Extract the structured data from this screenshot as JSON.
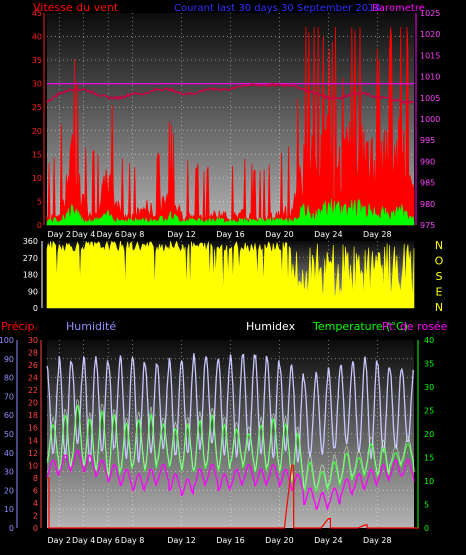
{
  "colors": {
    "background": "#000000",
    "plot_top": "#0b0b0b",
    "plot_bottom": "#b4b4b4",
    "wind": "#ff0000",
    "gust": "#00ff00",
    "barometer": "#ff00ff",
    "barometer_line": "#cc0044",
    "direction": "#ffff00",
    "humidity": "#9090ff",
    "humidity_line": "#c8c8ff",
    "humidex": "#ffffff",
    "temperature": "#00ff00",
    "temperature_line": "#44ff44",
    "dewpoint": "#ff00ff",
    "precip": "#ff0000",
    "title_blue": "#3030ff",
    "grid": "#ffffff"
  },
  "x_ticks": [
    "Day 2",
    "Day 4",
    "Day 6",
    "Day 8",
    "Day 12",
    "Day 16",
    "Day 20",
    "Day 24",
    "Day 28"
  ],
  "chart_data": [
    {
      "id": "wind",
      "type": "line",
      "title": "Courant last 30 days  30 September 2014",
      "left_label": "Vitesse du vent",
      "right_label": "Barometre",
      "x_range": [
        1,
        31
      ],
      "left_ticks": [
        "45",
        "40",
        "35",
        "30",
        "25",
        "20",
        "15",
        "10",
        "5",
        "0"
      ],
      "left_range": [
        0,
        45
      ],
      "right_ticks": [
        "1025",
        "1020",
        "1015",
        "1010",
        "1005",
        "1000",
        "995",
        "990",
        "985",
        "980",
        "975"
      ],
      "right_range": [
        975,
        1025
      ],
      "reference_line_left": 30,
      "series": [
        {
          "key": "wind",
          "values": [
            2,
            3,
            18,
            6,
            3,
            12,
            4,
            2,
            5,
            3,
            8,
            3,
            2,
            2,
            3,
            2,
            3,
            2,
            2,
            3,
            4,
            18,
            16,
            20,
            14,
            22,
            18,
            16,
            18,
            20,
            8
          ]
        },
        {
          "key": "gust",
          "values": [
            1,
            1,
            3,
            1,
            1,
            2,
            1,
            1,
            1,
            1,
            2,
            1,
            1,
            1,
            1,
            1,
            1,
            1,
            1,
            1,
            1,
            3,
            2,
            4,
            3,
            4,
            3,
            3,
            2,
            3,
            1
          ]
        },
        {
          "key": "barometer",
          "values": [
            1004,
            1006,
            1007,
            1007,
            1006,
            1005,
            1005,
            1006,
            1006,
            1007,
            1007,
            1006,
            1006,
            1007,
            1007,
            1007,
            1008,
            1008,
            1008,
            1008,
            1008,
            1007,
            1006,
            1005,
            1005,
            1006,
            1006,
            1005,
            1005,
            1004,
            1004
          ]
        }
      ]
    },
    {
      "id": "direction",
      "type": "area",
      "left_ticks": [
        "360",
        "270",
        "180",
        "90",
        "0"
      ],
      "left_range": [
        0,
        360
      ],
      "right_letters": [
        "N",
        "O",
        "S",
        "E",
        "N"
      ],
      "series": [
        {
          "key": "direction",
          "values": [
            340,
            330,
            320,
            330,
            335,
            330,
            320,
            315,
            330,
            320,
            330,
            340,
            330,
            320,
            330,
            340,
            330,
            320,
            330,
            320,
            150,
            120,
            160,
            130,
            120,
            110,
            150,
            140,
            130,
            160,
            300
          ]
        }
      ]
    },
    {
      "id": "temp",
      "type": "line",
      "left_label": "Précip.",
      "humidity_label": "Humidité",
      "humidex_label": "Humidex",
      "temp_label": "Temperature (°C)",
      "dew_label": "Pt. de rosée",
      "left_ticks": [
        "100",
        "90",
        "80",
        "70",
        "60",
        "50",
        "40",
        "30",
        "20",
        "10",
        "0"
      ],
      "left_range": [
        0,
        100
      ],
      "precip_ticks": [
        "30",
        "28",
        "26",
        "24",
        "22",
        "20",
        "18",
        "16",
        "14",
        "12",
        "10",
        "8",
        "6",
        "4",
        "2",
        "0"
      ],
      "right_ticks": [
        "40",
        "35",
        "30",
        "25",
        "20",
        "15",
        "10",
        "5",
        "0"
      ],
      "right_range": [
        0,
        40
      ],
      "series": [
        {
          "key": "humidity_max",
          "values": [
            85,
            90,
            88,
            92,
            90,
            89,
            91,
            90,
            88,
            87,
            90,
            89,
            92,
            91,
            90,
            92,
            93,
            92,
            90,
            88,
            85,
            80,
            82,
            85,
            87,
            89,
            90,
            88,
            86,
            85,
            84
          ]
        },
        {
          "key": "humidity_min",
          "values": [
            40,
            38,
            45,
            35,
            40,
            42,
            38,
            36,
            40,
            42,
            38,
            40,
            42,
            45,
            40,
            38,
            42,
            40,
            38,
            42,
            35,
            38,
            40,
            42,
            45,
            40,
            38,
            40,
            42,
            45,
            48
          ]
        },
        {
          "key": "temp_max",
          "values": [
            22,
            24,
            26,
            23,
            25,
            24,
            22,
            23,
            24,
            22,
            21,
            22,
            23,
            24,
            22,
            21,
            20,
            22,
            23,
            22,
            20,
            14,
            12,
            14,
            16,
            15,
            18,
            17,
            16,
            18,
            17
          ]
        },
        {
          "key": "temp_min",
          "values": [
            14,
            12,
            14,
            13,
            12,
            11,
            12,
            13,
            12,
            14,
            13,
            12,
            12,
            13,
            12,
            14,
            13,
            12,
            13,
            12,
            10,
            8,
            8,
            9,
            10,
            11,
            12,
            11,
            13,
            14,
            12
          ]
        },
        {
          "key": "dew",
          "values": [
            13,
            14,
            15,
            14,
            13,
            12,
            11,
            10,
            11,
            12,
            10,
            9,
            11,
            12,
            10,
            11,
            12,
            11,
            12,
            11,
            10,
            7,
            6,
            7,
            9,
            10,
            11,
            12,
            13,
            13,
            12
          ]
        },
        {
          "key": "precip",
          "values": [
            8,
            0,
            0,
            0,
            0,
            0,
            0,
            0,
            0,
            0,
            0,
            0,
            0,
            0,
            0,
            0,
            0,
            0,
            0,
            0,
            10,
            0,
            0,
            1.5,
            0,
            0,
            0.5,
            0,
            0,
            0,
            0
          ]
        }
      ]
    }
  ]
}
